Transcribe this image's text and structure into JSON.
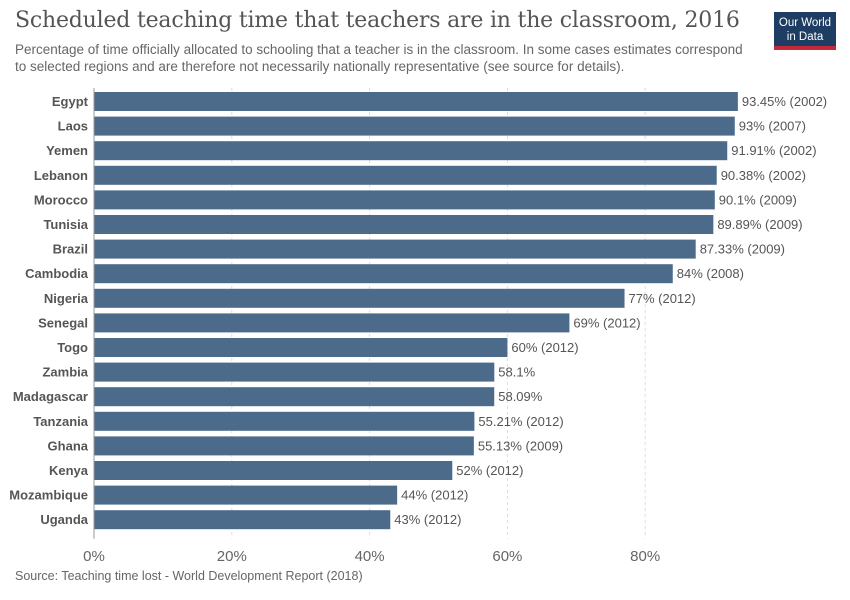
{
  "header": {
    "title": "Scheduled teaching time that teachers are in the classroom, 2016",
    "subtitle": "Percentage of time officially allocated to schooling that a teacher is in the classroom. In some cases estimates correspond to selected regions and are therefore not necessarily nationally representative (see source for details).",
    "logo_line1": "Our World",
    "logo_line2": "in Data"
  },
  "footer": {
    "source": "Source: Teaching time lost - World Development Report (2018)"
  },
  "colors": {
    "bar": "#4c6a8a",
    "logo_bg": "#1d3d63",
    "logo_accent": "#c3293b"
  },
  "chart_data": {
    "type": "bar",
    "orientation": "horizontal",
    "categories": [
      "Egypt",
      "Laos",
      "Yemen",
      "Lebanon",
      "Morocco",
      "Tunisia",
      "Brazil",
      "Cambodia",
      "Nigeria",
      "Senegal",
      "Togo",
      "Zambia",
      "Madagascar",
      "Tanzania",
      "Ghana",
      "Kenya",
      "Mozambique",
      "Uganda"
    ],
    "values": [
      93.45,
      93,
      91.91,
      90.38,
      90.1,
      89.89,
      87.33,
      84,
      77,
      69,
      60,
      58.1,
      58.09,
      55.21,
      55.13,
      52,
      44,
      43
    ],
    "value_labels": [
      "93.45% (2002)",
      "93% (2007)",
      "91.91% (2002)",
      "90.38% (2002)",
      "90.1% (2009)",
      "89.89% (2009)",
      "87.33% (2009)",
      "84% (2008)",
      "77% (2012)",
      "69% (2012)",
      "60% (2012)",
      "58.1%",
      "58.09%",
      "55.21% (2012)",
      "55.13% (2009)",
      "52% (2012)",
      "44% (2012)",
      "43% (2012)"
    ],
    "x_ticks": [
      0,
      20,
      40,
      60,
      80
    ],
    "x_tick_labels": [
      "0%",
      "20%",
      "40%",
      "60%",
      "80%"
    ],
    "xlim": [
      0,
      100
    ],
    "grid": "vertical dashed"
  }
}
